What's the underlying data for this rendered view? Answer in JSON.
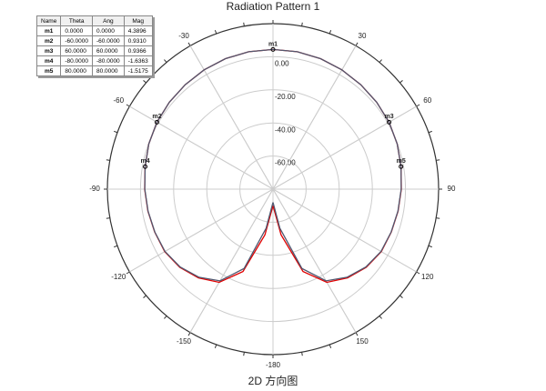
{
  "chart_data": {
    "type": "polar",
    "title": "Radiation Pattern 1",
    "caption": "2D 方向图",
    "x": [
      -180,
      -170,
      -160,
      -150,
      -140,
      -130,
      -120,
      -110,
      -100,
      -90,
      -80,
      -70,
      -60,
      -50,
      -40,
      -30,
      -20,
      -10,
      0,
      10,
      20,
      30,
      40,
      50,
      60,
      70,
      80,
      90,
      100,
      110,
      120,
      130,
      140,
      150,
      160,
      170,
      180
    ],
    "series": [
      {
        "color": "#e00000",
        "values": [
          -70,
          -52,
          -27,
          -15,
          -10,
          -6.5,
          -4.5,
          -4,
          -3.3,
          -2.5,
          -1.6,
          -0.2,
          0.93,
          1.7,
          2.4,
          3.2,
          3.9,
          4.3,
          4.39,
          4.3,
          3.9,
          3.2,
          2.4,
          1.7,
          0.93,
          -0.2,
          -1.5,
          -2.5,
          -3.3,
          -4,
          -4.5,
          -6.5,
          -10,
          -15,
          -27,
          -52,
          -70
        ]
      },
      {
        "color": "#505870",
        "values": [
          -72,
          -56,
          -29,
          -16,
          -10.5,
          -6.8,
          -4.7,
          -4.1,
          -3.4,
          -2.6,
          -1.6,
          -0.2,
          0.93,
          1.7,
          2.4,
          3.2,
          3.9,
          4.3,
          4.39,
          4.3,
          3.9,
          3.2,
          2.4,
          1.7,
          0.93,
          -0.2,
          -1.5,
          -2.6,
          -3.4,
          -4.1,
          -4.7,
          -6.8,
          -10.5,
          -16,
          -29,
          -56,
          -72
        ]
      }
    ],
    "rlim": [
      -80,
      20
    ],
    "rticks": [
      {
        "value": -60,
        "label": "-60.00"
      },
      {
        "value": -40,
        "label": "-40.00"
      },
      {
        "value": -20,
        "label": "-20.00"
      },
      {
        "value": 0,
        "label": "0.00"
      }
    ],
    "thetaticks": [
      -180,
      -150,
      -120,
      -90,
      -60,
      -30,
      30,
      60,
      90,
      120,
      150
    ],
    "grid": true,
    "marker_table": {
      "columns": [
        "Name",
        "Theta",
        "Ang",
        "Mag"
      ]
    },
    "markers": [
      {
        "name": "m1",
        "theta": {
          "value": 0,
          "label": "0.0000"
        },
        "ang": {
          "value": 0,
          "label": "0.0000"
        },
        "mag": 4.3896
      },
      {
        "name": "m2",
        "theta": {
          "value": -60,
          "label": "-60.0000"
        },
        "ang": {
          "value": -60,
          "label": "-60.0000"
        },
        "mag": {
          "value": 0.931,
          "label": "0.9310"
        }
      },
      {
        "name": "m3",
        "theta": {
          "value": 60,
          "label": "60.0000"
        },
        "ang": {
          "value": 60,
          "label": "60.0000"
        },
        "mag": 0.9366
      },
      {
        "name": "m4",
        "theta": {
          "value": -80,
          "label": "-80.0000"
        },
        "ang": {
          "value": -80,
          "label": "-80.0000"
        },
        "mag": -1.6363
      },
      {
        "name": "m5",
        "theta": {
          "value": 80,
          "label": "80.0000"
        },
        "ang": {
          "value": 80,
          "label": "80.0000"
        },
        "mag": -1.5175
      }
    ]
  }
}
